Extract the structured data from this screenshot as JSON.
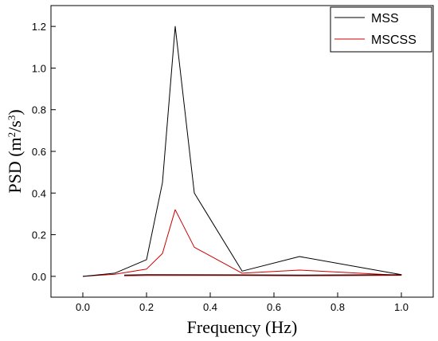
{
  "chart_data": {
    "type": "line",
    "xlabel": "Frequency (Hz)",
    "ylabel_main": "PSD (m",
    "ylabel_sup1": "2",
    "ylabel_mid": "/s",
    "ylabel_sup2": "3",
    "ylabel_end": ")",
    "xlim": [
      -0.1,
      1.1
    ],
    "ylim": [
      -0.1,
      1.3
    ],
    "xticks": [
      0.0,
      0.2,
      0.4,
      0.6,
      0.8,
      1.0
    ],
    "xtick_labels": [
      "0.0",
      "0.2",
      "0.4",
      "0.6",
      "0.8",
      "1.0"
    ],
    "yticks": [
      0.0,
      0.2,
      0.4,
      0.6,
      0.8,
      1.0,
      1.2
    ],
    "ytick_labels": [
      "0.0",
      "0.2",
      "0.4",
      "0.6",
      "0.8",
      "1.0",
      "1.2"
    ],
    "legend_position": "top-right",
    "grid": false,
    "series": [
      {
        "name": "MSS",
        "color": "#000000",
        "x": [
          0.0,
          0.1,
          0.2,
          0.25,
          0.29,
          0.35,
          0.5,
          0.68,
          1.0,
          0.68,
          0.5,
          0.2,
          0.13
        ],
        "y": [
          0.0,
          0.015,
          0.08,
          0.45,
          1.2,
          0.4,
          0.025,
          0.095,
          0.008,
          0.006,
          0.007,
          0.008,
          0.006
        ]
      },
      {
        "name": "MSCSS",
        "color": "#cc0000",
        "x": [
          0.0,
          0.1,
          0.2,
          0.25,
          0.29,
          0.35,
          0.5,
          0.68,
          1.0,
          0.68,
          0.5,
          0.2,
          0.13
        ],
        "y": [
          0.0,
          0.01,
          0.035,
          0.11,
          0.32,
          0.14,
          0.015,
          0.03,
          0.005,
          0.003,
          0.004,
          0.004,
          0.003
        ]
      }
    ]
  }
}
